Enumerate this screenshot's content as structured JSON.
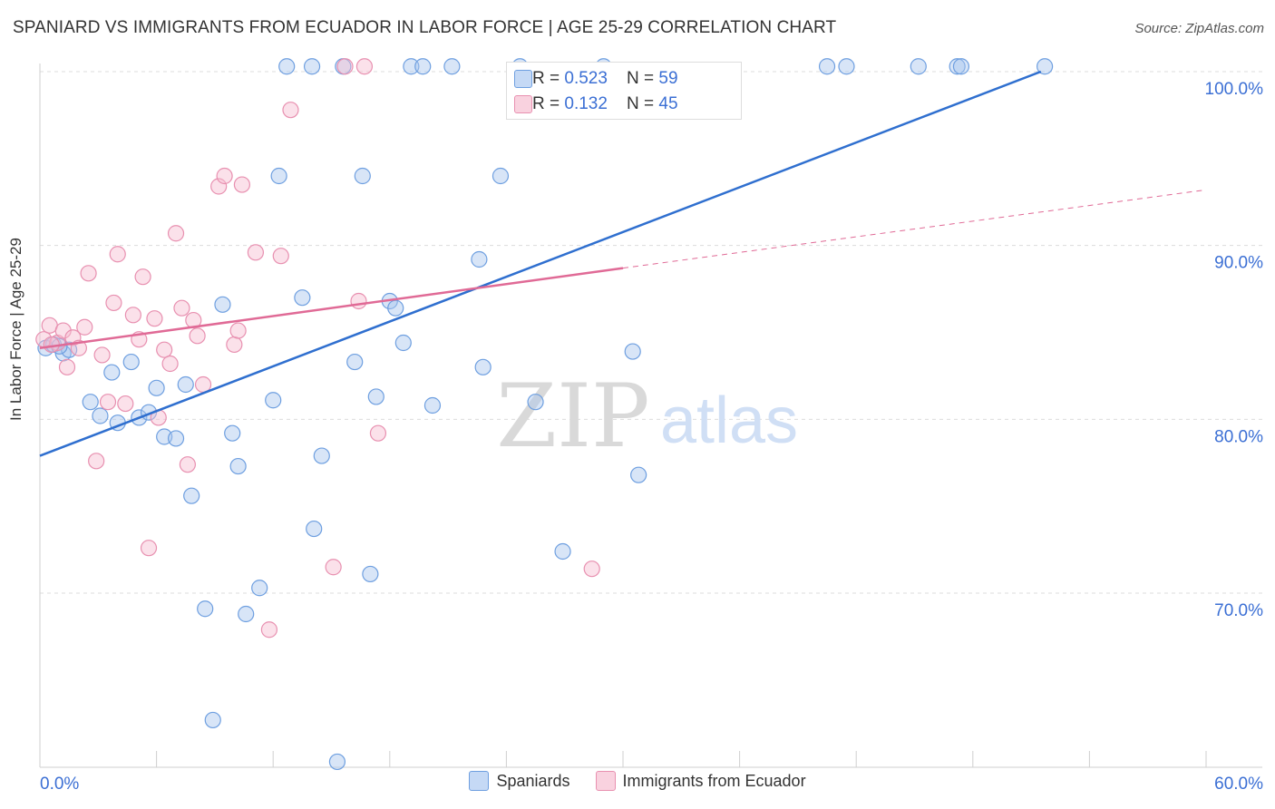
{
  "title": "SPANIARD VS IMMIGRANTS FROM ECUADOR IN LABOR FORCE | AGE 25-29 CORRELATION CHART",
  "source": "Source: ZipAtlas.com",
  "watermark": {
    "zip": "ZIP",
    "atlas": "atlas"
  },
  "colors": {
    "blue_fill": "#a9c6ee",
    "blue_stroke": "#6e9fe0",
    "blue_line": "#2f6fcf",
    "pink_fill": "#f6bcd0",
    "pink_stroke": "#e890b0",
    "pink_line": "#e06a96",
    "axis_text": "#3b6fd4"
  },
  "stats": [
    {
      "r_label": "R = ",
      "r_value": "0.523",
      "n_label": "N = ",
      "n_value": "59"
    },
    {
      "r_label": "R = ",
      "r_value": "0.132",
      "n_label": "N = ",
      "n_value": "45"
    }
  ],
  "chart_data": {
    "type": "scatter",
    "title": "SPANIARD VS IMMIGRANTS FROM ECUADOR IN LABOR FORCE | AGE 25-29 CORRELATION CHART",
    "xlabel": "",
    "ylabel": "In Labor Force | Age 25-29",
    "xlim": [
      0,
      60
    ],
    "ylim": [
      60,
      101
    ],
    "x_tick_labels": [
      "0.0%",
      "60.0%"
    ],
    "y_ticks": [
      70,
      80,
      90,
      100
    ],
    "y_tick_labels": [
      "70.0%",
      "80.0%",
      "90.0%",
      "100.0%"
    ],
    "legend": [
      "Spaniards",
      "Immigrants from Ecuador"
    ],
    "series": [
      {
        "name": "Spaniards",
        "trend": {
          "x0": 0,
          "y0": 77.9,
          "x1": 51.5,
          "y1": 100
        },
        "points": [
          [
            0.3,
            84.1
          ],
          [
            0.7,
            84.3
          ],
          [
            1.2,
            83.8
          ],
          [
            1.5,
            84.0
          ],
          [
            2.6,
            81.0
          ],
          [
            3.1,
            80.2
          ],
          [
            3.7,
            82.7
          ],
          [
            4.0,
            79.8
          ],
          [
            4.7,
            83.3
          ],
          [
            5.1,
            80.1
          ],
          [
            6.0,
            81.8
          ],
          [
            5.6,
            80.4
          ],
          [
            6.4,
            79.0
          ],
          [
            7.0,
            78.9
          ],
          [
            7.5,
            82.0
          ],
          [
            7.8,
            75.6
          ],
          [
            8.5,
            69.1
          ],
          [
            8.9,
            62.7
          ],
          [
            9.4,
            86.6
          ],
          [
            9.9,
            79.2
          ],
          [
            10.2,
            77.3
          ],
          [
            10.6,
            68.8
          ],
          [
            11.3,
            70.3
          ],
          [
            12.0,
            81.1
          ],
          [
            12.3,
            94.0
          ],
          [
            12.7,
            100.3
          ],
          [
            13.5,
            87.0
          ],
          [
            14.0,
            100.3
          ],
          [
            14.1,
            73.7
          ],
          [
            14.5,
            77.9
          ],
          [
            15.3,
            60.3
          ],
          [
            15.6,
            100.3
          ],
          [
            16.2,
            83.3
          ],
          [
            16.6,
            94.0
          ],
          [
            17.0,
            71.1
          ],
          [
            17.3,
            81.3
          ],
          [
            18.0,
            86.8
          ],
          [
            18.3,
            86.4
          ],
          [
            18.7,
            84.4
          ],
          [
            19.1,
            100.3
          ],
          [
            19.7,
            100.3
          ],
          [
            20.2,
            80.8
          ],
          [
            21.2,
            100.3
          ],
          [
            22.6,
            89.2
          ],
          [
            22.8,
            83.0
          ],
          [
            23.7,
            94.0
          ],
          [
            24.7,
            100.3
          ],
          [
            25.5,
            81.0
          ],
          [
            26.9,
            72.4
          ],
          [
            29.0,
            100.3
          ],
          [
            30.5,
            83.9
          ],
          [
            30.8,
            76.8
          ],
          [
            40.5,
            100.3
          ],
          [
            41.5,
            100.3
          ],
          [
            45.2,
            100.3
          ],
          [
            47.2,
            100.3
          ],
          [
            47.4,
            100.3
          ],
          [
            51.7,
            100.3
          ],
          [
            1.0,
            84.2
          ]
        ]
      },
      {
        "name": "Immigrants from Ecuador",
        "trend": {
          "x0": 0,
          "y0": 84.1,
          "x1": 30,
          "y1": 88.7,
          "dash_x1": 60,
          "dash_y1": 93.2
        },
        "points": [
          [
            0.2,
            84.6
          ],
          [
            0.5,
            85.4
          ],
          [
            0.9,
            84.4
          ],
          [
            1.2,
            85.1
          ],
          [
            1.4,
            83.0
          ],
          [
            1.7,
            84.7
          ],
          [
            2.0,
            84.1
          ],
          [
            2.3,
            85.3
          ],
          [
            2.5,
            88.4
          ],
          [
            2.9,
            77.6
          ],
          [
            3.2,
            83.7
          ],
          [
            3.5,
            81.0
          ],
          [
            3.8,
            86.7
          ],
          [
            4.0,
            89.5
          ],
          [
            4.4,
            80.9
          ],
          [
            4.8,
            86.0
          ],
          [
            5.1,
            84.6
          ],
          [
            5.3,
            88.2
          ],
          [
            5.6,
            72.6
          ],
          [
            5.9,
            85.8
          ],
          [
            6.1,
            80.1
          ],
          [
            6.4,
            84.0
          ],
          [
            6.7,
            83.2
          ],
          [
            7.0,
            90.7
          ],
          [
            7.3,
            86.4
          ],
          [
            7.6,
            77.4
          ],
          [
            7.9,
            85.7
          ],
          [
            8.1,
            84.8
          ],
          [
            8.4,
            82.0
          ],
          [
            9.2,
            93.4
          ],
          [
            9.5,
            94.0
          ],
          [
            10.0,
            84.3
          ],
          [
            10.2,
            85.1
          ],
          [
            10.4,
            93.5
          ],
          [
            11.1,
            89.6
          ],
          [
            11.8,
            67.9
          ],
          [
            12.4,
            89.4
          ],
          [
            12.9,
            97.8
          ],
          [
            15.1,
            71.5
          ],
          [
            15.7,
            100.3
          ],
          [
            16.4,
            86.8
          ],
          [
            16.7,
            100.3
          ],
          [
            17.4,
            79.2
          ],
          [
            28.4,
            71.4
          ],
          [
            0.6,
            84.3
          ]
        ]
      }
    ]
  }
}
